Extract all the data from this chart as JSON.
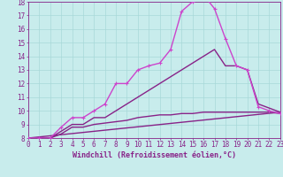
{
  "xlabel": "Windchill (Refroidissement éolien,°C)",
  "xlim": [
    0,
    23
  ],
  "ylim": [
    8,
    18
  ],
  "bg_color": "#c8ecec",
  "grid_color": "#a8d8d8",
  "lines": [
    {
      "x": [
        0,
        1,
        2,
        3,
        4,
        5,
        6,
        7,
        8,
        9,
        10,
        11,
        12,
        13,
        14,
        15,
        16,
        17,
        18,
        19,
        20,
        21,
        22,
        23
      ],
      "y": [
        8,
        8,
        8,
        8.8,
        9.5,
        9.5,
        10,
        10.5,
        12,
        12,
        13,
        13.3,
        13.5,
        14.5,
        17.3,
        18,
        18.5,
        17.5,
        15.3,
        13.3,
        13,
        10.3,
        10,
        9.8
      ],
      "color": "#cc44cc",
      "marker": "+",
      "ms": 3,
      "lw": 1.0
    },
    {
      "x": [
        0,
        1,
        2,
        3,
        4,
        5,
        6,
        7,
        8,
        9,
        10,
        11,
        12,
        13,
        14,
        15,
        16,
        17,
        18,
        19,
        20,
        21,
        22,
        23
      ],
      "y": [
        8,
        8,
        8,
        8.5,
        9.0,
        9.0,
        9.5,
        9.5,
        10,
        10.5,
        11,
        11.5,
        12,
        12.5,
        13,
        13.5,
        14,
        14.5,
        13.3,
        13.3,
        13,
        10.5,
        10.2,
        9.9
      ],
      "color": "#882288",
      "marker": null,
      "ms": 0,
      "lw": 1.0
    },
    {
      "x": [
        0,
        1,
        2,
        3,
        4,
        5,
        6,
        7,
        8,
        9,
        10,
        11,
        12,
        13,
        14,
        15,
        16,
        17,
        18,
        19,
        20,
        21,
        22,
        23
      ],
      "y": [
        8,
        8,
        8,
        8.3,
        8.8,
        8.8,
        9.0,
        9.1,
        9.2,
        9.3,
        9.5,
        9.6,
        9.7,
        9.7,
        9.8,
        9.8,
        9.9,
        9.9,
        9.9,
        9.9,
        9.9,
        9.9,
        9.9,
        9.8
      ],
      "color": "#882288",
      "marker": null,
      "ms": 0,
      "lw": 1.0
    },
    {
      "x": [
        0,
        23
      ],
      "y": [
        8,
        9.9
      ],
      "color": "#882288",
      "marker": null,
      "ms": 0,
      "lw": 1.0
    }
  ],
  "font_color": "#882288",
  "tick_fontsize": 5.5,
  "label_fontsize": 6.0
}
